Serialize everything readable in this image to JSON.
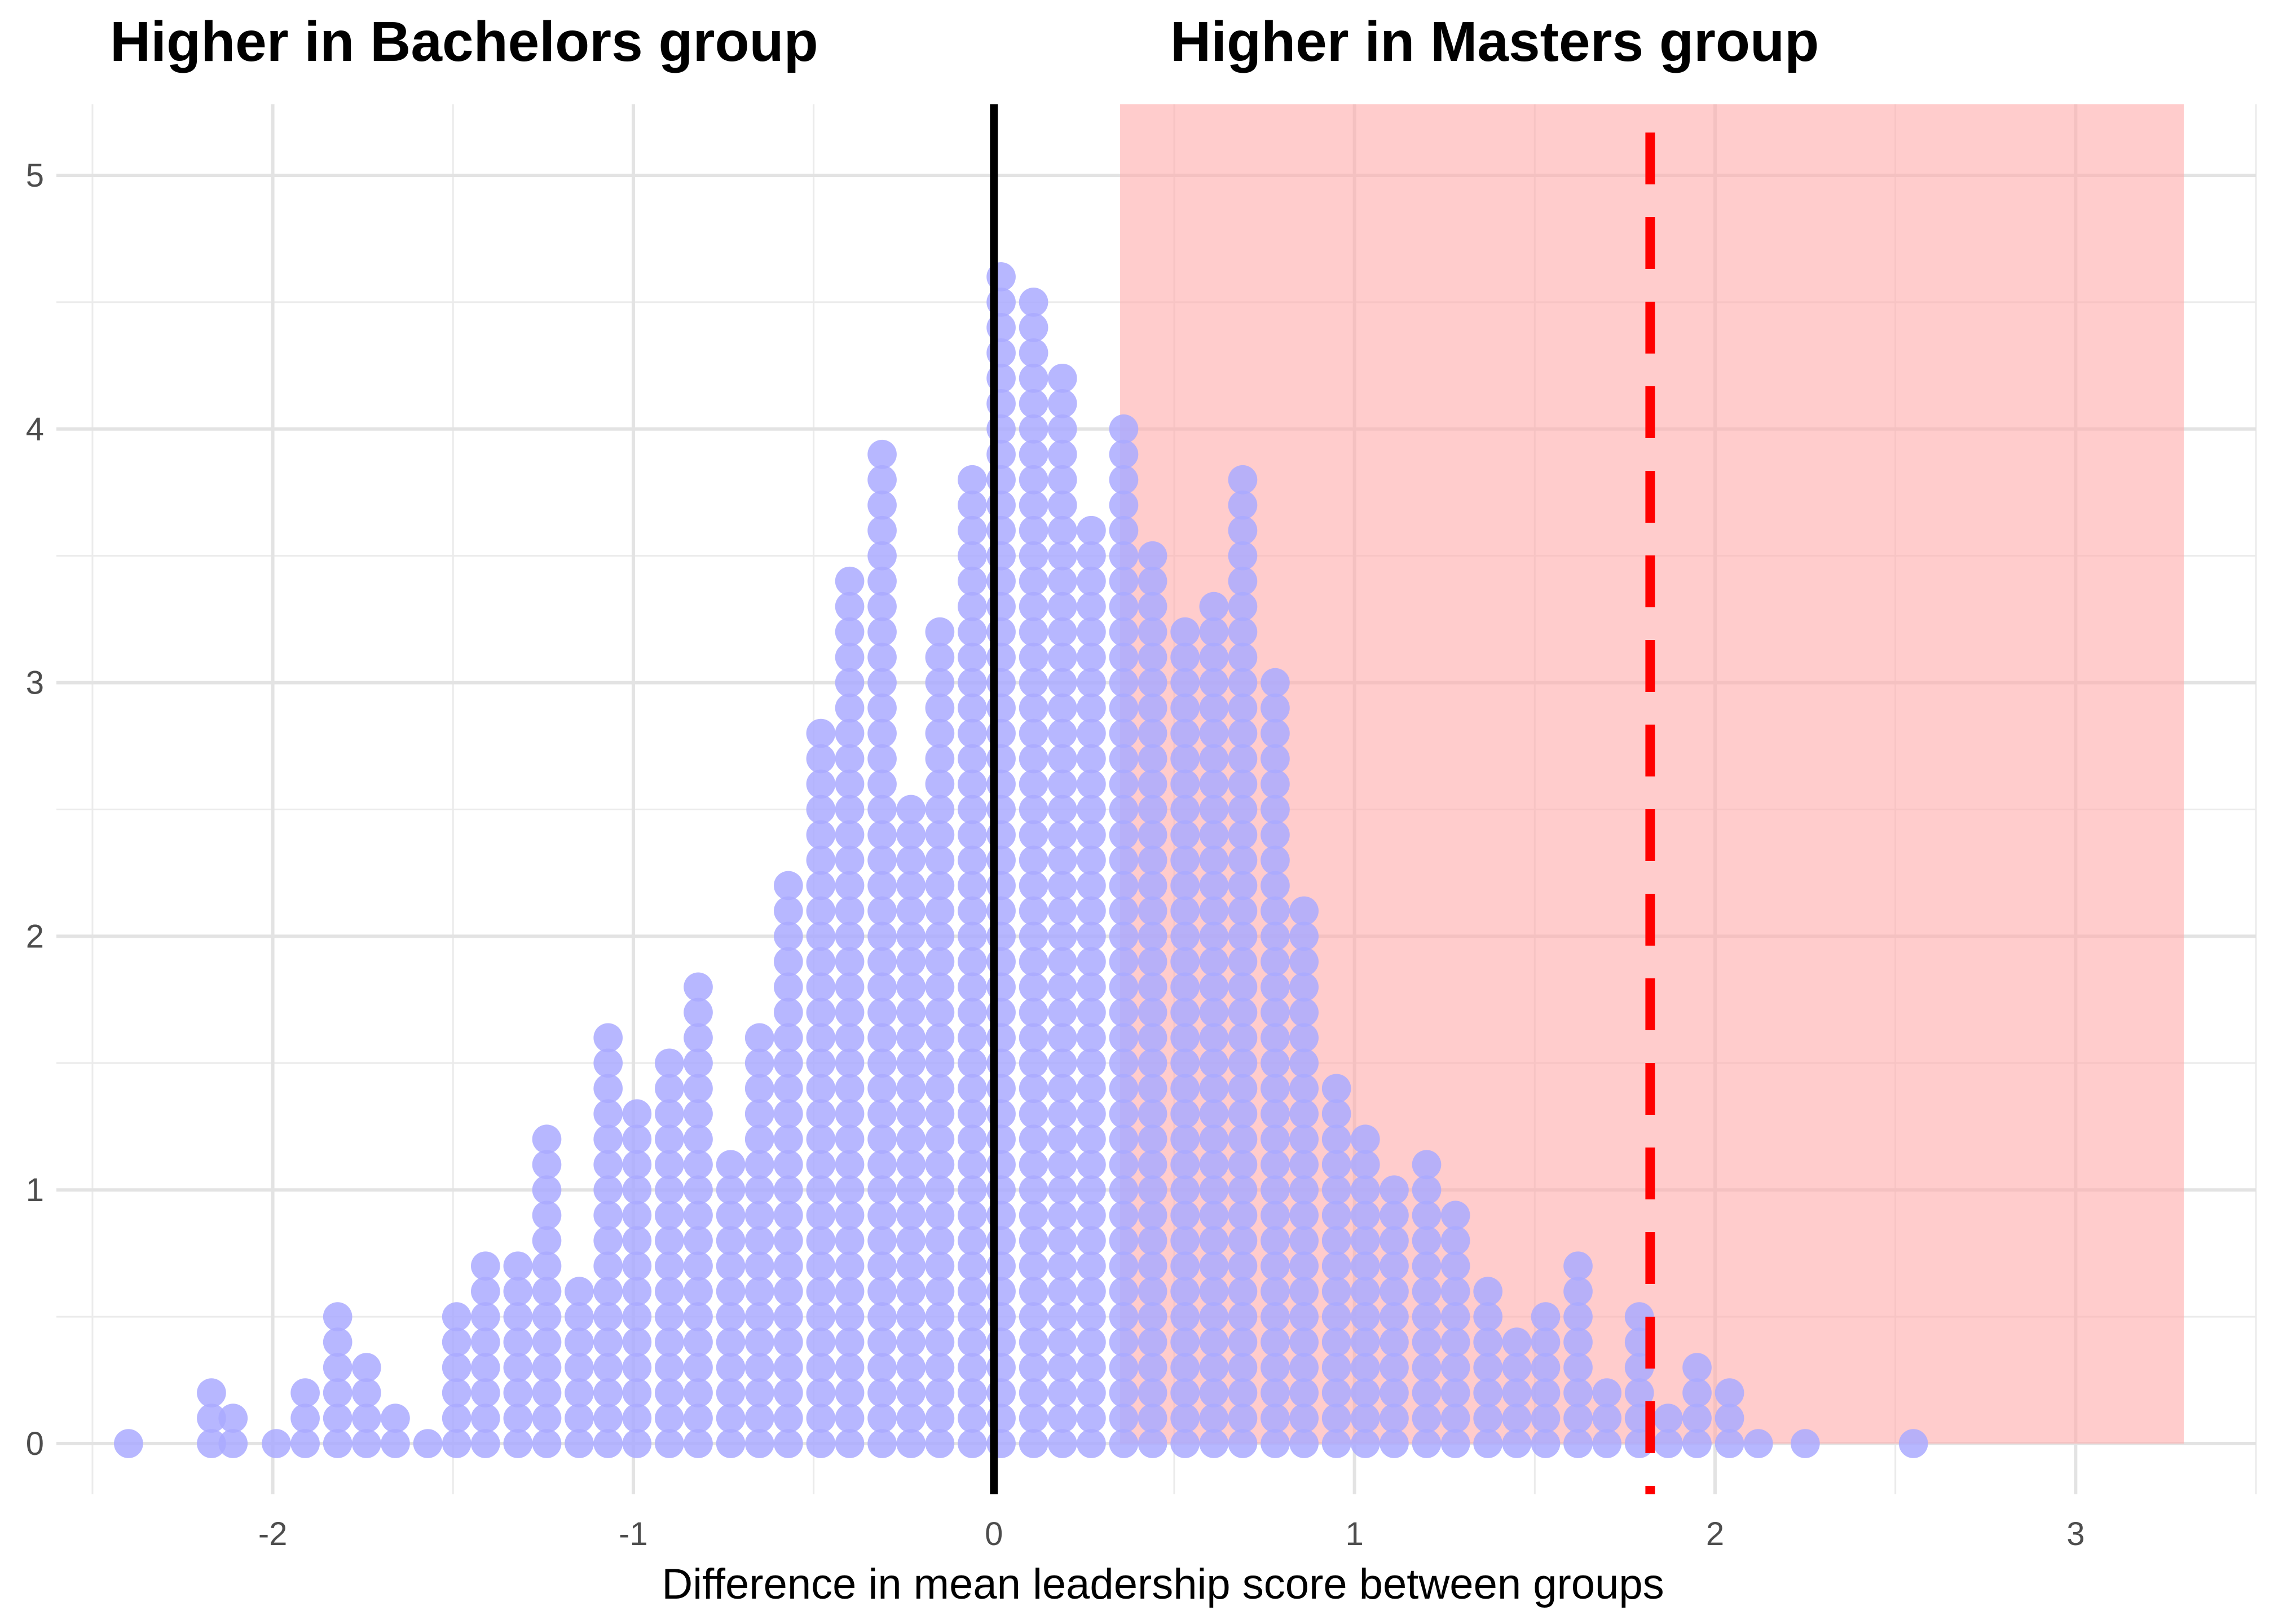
{
  "chart_data": {
    "type": "dotplot",
    "title_left": "Higher in Bachelors group",
    "title_right": "Higher in Masters group",
    "xlabel": "Difference in mean leadership score between groups",
    "ylabel": "",
    "x_ticks": [
      "-2",
      "-1",
      "0",
      "1",
      "2",
      "3"
    ],
    "y_ticks": [
      "0",
      "1",
      "2",
      "3",
      "4",
      "5"
    ],
    "xlim": [
      -2.6,
      3.5
    ],
    "ylim": [
      -0.2,
      5.28
    ],
    "grid": true,
    "reference_line": {
      "x": 0,
      "color": "#000000"
    },
    "observed_line": {
      "x": 1.82,
      "color": "#ff0000",
      "style": "dashed"
    },
    "shaded_region": {
      "x_start": 0.35,
      "x_end": 3.3,
      "color": "#ffaaaa"
    },
    "dot_color": "#aaaaff",
    "dot_spacing_x": 0.0842,
    "dot_stack_step": 0.1,
    "stacks": [
      {
        "x": -2.4,
        "n": 1
      },
      {
        "x": -2.17,
        "n": 3
      },
      {
        "x": -2.11,
        "n": 2
      },
      {
        "x": -1.99,
        "n": 1
      },
      {
        "x": -1.91,
        "n": 3
      },
      {
        "x": -1.82,
        "n": 6
      },
      {
        "x": -1.74,
        "n": 4
      },
      {
        "x": -1.66,
        "n": 2
      },
      {
        "x": -1.57,
        "n": 1
      },
      {
        "x": -1.49,
        "n": 6
      },
      {
        "x": -1.41,
        "n": 8
      },
      {
        "x": -1.32,
        "n": 8
      },
      {
        "x": -1.24,
        "n": 13
      },
      {
        "x": -1.15,
        "n": 7
      },
      {
        "x": -1.07,
        "n": 17
      },
      {
        "x": -0.99,
        "n": 14
      },
      {
        "x": -0.9,
        "n": 16
      },
      {
        "x": -0.82,
        "n": 19
      },
      {
        "x": -0.73,
        "n": 12
      },
      {
        "x": -0.65,
        "n": 17
      },
      {
        "x": -0.57,
        "n": 23
      },
      {
        "x": -0.48,
        "n": 29
      },
      {
        "x": -0.4,
        "n": 35
      },
      {
        "x": -0.31,
        "n": 40
      },
      {
        "x": -0.23,
        "n": 26
      },
      {
        "x": -0.15,
        "n": 33
      },
      {
        "x": -0.06,
        "n": 39
      },
      {
        "x": 0.02,
        "n": 47
      },
      {
        "x": 0.11,
        "n": 46
      },
      {
        "x": 0.19,
        "n": 43
      },
      {
        "x": 0.27,
        "n": 37
      },
      {
        "x": 0.36,
        "n": 41
      },
      {
        "x": 0.44,
        "n": 36
      },
      {
        "x": 0.53,
        "n": 33
      },
      {
        "x": 0.61,
        "n": 34
      },
      {
        "x": 0.69,
        "n": 39
      },
      {
        "x": 0.78,
        "n": 31
      },
      {
        "x": 0.86,
        "n": 22
      },
      {
        "x": 0.95,
        "n": 15
      },
      {
        "x": 1.03,
        "n": 13
      },
      {
        "x": 1.11,
        "n": 11
      },
      {
        "x": 1.2,
        "n": 12
      },
      {
        "x": 1.28,
        "n": 10
      },
      {
        "x": 1.37,
        "n": 7
      },
      {
        "x": 1.45,
        "n": 5
      },
      {
        "x": 1.53,
        "n": 6
      },
      {
        "x": 1.62,
        "n": 8
      },
      {
        "x": 1.7,
        "n": 3
      },
      {
        "x": 1.79,
        "n": 6
      },
      {
        "x": 1.87,
        "n": 2
      },
      {
        "x": 1.95,
        "n": 4
      },
      {
        "x": 2.04,
        "n": 3
      },
      {
        "x": 2.12,
        "n": 1
      },
      {
        "x": 2.25,
        "n": 1
      },
      {
        "x": 2.55,
        "n": 1
      }
    ]
  }
}
